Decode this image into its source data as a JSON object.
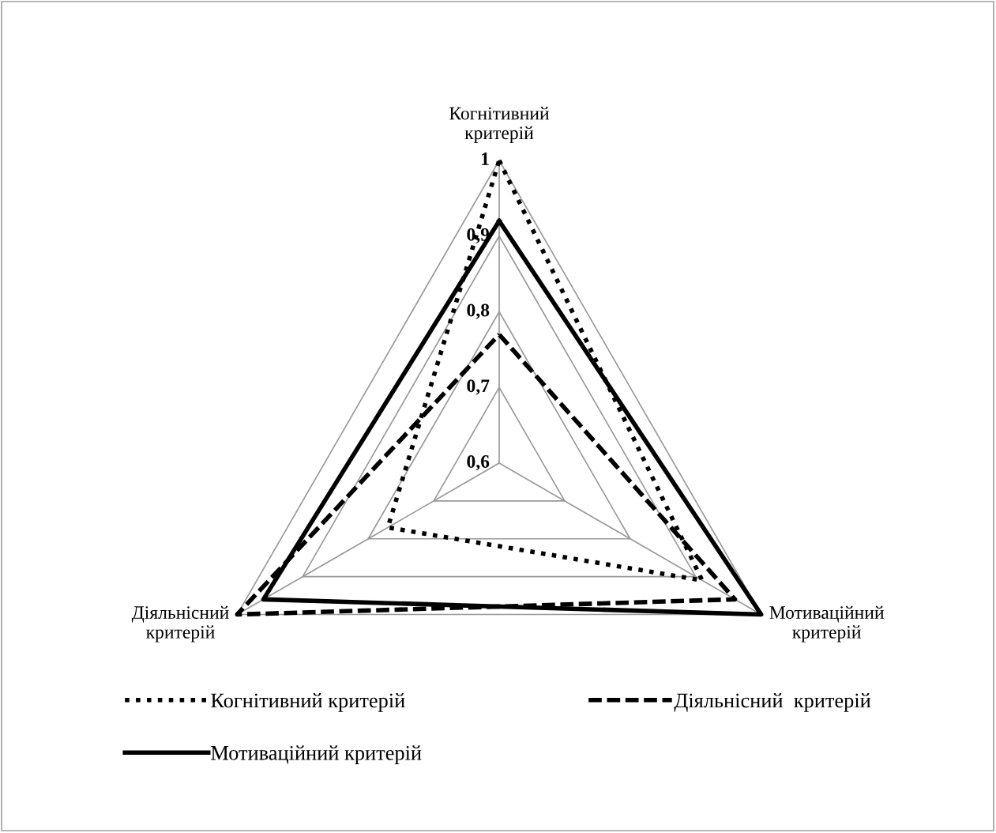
{
  "chart_data": {
    "type": "radar",
    "categories": [
      "Когнітивний\nкритерій",
      "Мотиваційний\nкритерій",
      "Діяльнісний\nкритерій"
    ],
    "ylim": [
      0.6,
      1
    ],
    "yticks": [
      {
        "value": 0.6,
        "label": "0,6"
      },
      {
        "value": 0.7,
        "label": "0,7"
      },
      {
        "value": 0.8,
        "label": "0,8"
      },
      {
        "value": 0.9,
        "label": "0,9"
      },
      1
    ],
    "grid": true,
    "legend": "bottom",
    "series": [
      {
        "name": "Когнітивний критерій",
        "color": "#000000",
        "line_style": "dotted",
        "values": [
          1.0,
          0.91,
          0.77
        ]
      },
      {
        "name": "Мотиваційний критерій",
        "color": "#000000",
        "line_style": "solid",
        "values": [
          0.92,
          1.0,
          0.96
        ]
      },
      {
        "name": "Діяльнісний  критерій",
        "color": "#000000",
        "line_style": "dashed",
        "values": [
          0.77,
          0.96,
          1.0
        ]
      }
    ]
  }
}
